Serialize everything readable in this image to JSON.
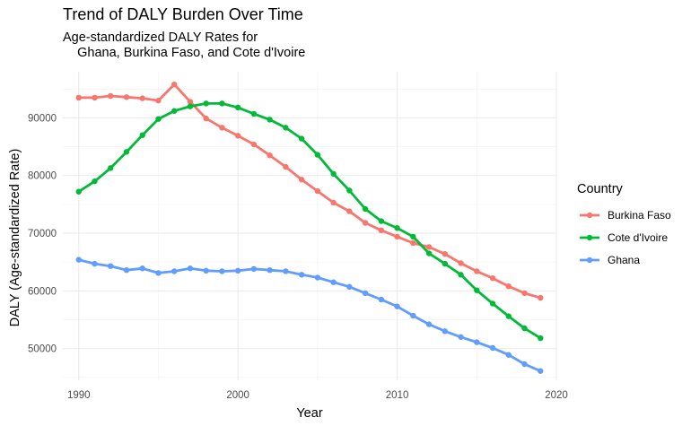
{
  "chart_data": {
    "type": "line",
    "title": "Trend of DALY Burden Over Time",
    "subtitle": "Age-standardized DALY Rates for\n    Ghana, Burkina Faso, and Cote d'Ivoire",
    "xlabel": "Year",
    "ylabel": "DALY (Age-standardized Rate)",
    "xlim": [
      1989,
      2020
    ],
    "ylim": [
      44500,
      98000
    ],
    "x_ticks": [
      1990,
      2000,
      2010,
      2020
    ],
    "y_ticks": [
      50000,
      60000,
      70000,
      80000,
      90000
    ],
    "y_tick_labels": [
      "50000",
      "60000",
      "70000",
      "80000",
      "90000"
    ],
    "grid": true,
    "legend": {
      "title": "Country",
      "placement": "right"
    },
    "x": [
      1990,
      1991,
      1992,
      1993,
      1994,
      1995,
      1996,
      1997,
      1998,
      1999,
      2000,
      2001,
      2002,
      2003,
      2004,
      2005,
      2006,
      2007,
      2008,
      2009,
      2010,
      2011,
      2012,
      2013,
      2014,
      2015,
      2016,
      2017,
      2018,
      2019
    ],
    "series": [
      {
        "name": "Burkina Faso",
        "color": "#F8766D",
        "values": [
          93500,
          93500,
          93800,
          93600,
          93400,
          93000,
          95800,
          92800,
          89900,
          88300,
          86900,
          85400,
          83500,
          81500,
          79300,
          77300,
          75300,
          73800,
          71800,
          70500,
          69400,
          68300,
          67600,
          66400,
          64800,
          63400,
          62200,
          60800,
          59600,
          58800
        ]
      },
      {
        "name": "Cote d'Ivoire",
        "color": "#00BA38",
        "values": [
          77200,
          79000,
          81300,
          84100,
          87000,
          89800,
          91200,
          92000,
          92500,
          92500,
          91800,
          90700,
          89700,
          88300,
          86400,
          83600,
          80300,
          77400,
          74200,
          72100,
          70900,
          69400,
          66500,
          64700,
          62800,
          60100,
          57800,
          55600,
          53500,
          51800
        ]
      },
      {
        "name": "Ghana",
        "color": "#619CFF",
        "values": [
          65400,
          64700,
          64300,
          63600,
          63900,
          63100,
          63400,
          63900,
          63500,
          63400,
          63500,
          63800,
          63600,
          63400,
          62800,
          62300,
          61500,
          60700,
          59600,
          58500,
          57300,
          55700,
          54200,
          53000,
          52000,
          51100,
          50100,
          48900,
          47300,
          46100
        ]
      }
    ]
  }
}
